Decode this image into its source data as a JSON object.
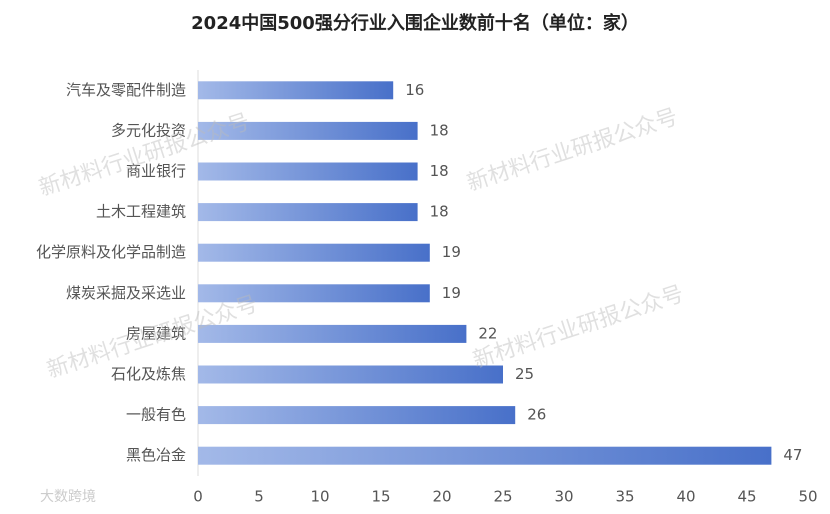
{
  "chart_data": {
    "type": "barh",
    "title": "2024中国500强分行业入围企业数前十名（单位：家）",
    "categories": [
      "汽车及零配件制造",
      "多元化投资",
      "商业银行",
      "土木工程建筑",
      "化学原料及化学品制造",
      "煤炭采掘及采选业",
      "房屋建筑",
      "石化及炼焦",
      "一般有色",
      "黑色冶金"
    ],
    "values": [
      16,
      18,
      18,
      18,
      19,
      19,
      22,
      25,
      26,
      47
    ],
    "colors": [
      "#a3b9e8",
      "#4870c9"
    ],
    "xlim": [
      0,
      50
    ],
    "xticks": [
      0,
      5,
      10,
      15,
      20,
      25,
      30,
      35,
      40,
      45,
      50
    ],
    "grid": false,
    "watermark": "新材料行业研报公众号",
    "source": "大数跨境"
  }
}
